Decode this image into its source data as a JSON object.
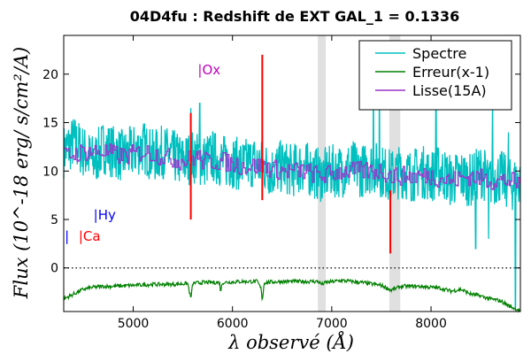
{
  "chart_data": {
    "type": "line",
    "title": "04D4fu : Redshift de EXT GAL_1 = 0.1336",
    "xlabel": "λ observé (Å)",
    "ylabel": "Flux (10^-18 erg/ s/cm²/A)",
    "xlim": [
      4300,
      8900
    ],
    "ylim": [
      -4.5,
      24
    ],
    "x_ticks": [
      5000,
      6000,
      7000,
      8000
    ],
    "y_ticks": [
      0,
      5,
      10,
      15,
      20
    ],
    "grid": false,
    "legend_position": "top-right",
    "zero_line": {
      "y": 0,
      "style": "dotted"
    },
    "shaded_bands": [
      {
        "x0": 6860,
        "x1": 6940
      },
      {
        "x0": 7580,
        "x1": 7690
      }
    ],
    "series": [
      {
        "name": "Spectre",
        "color": "#00bfbf",
        "points": [
          [
            4300,
            12
          ],
          [
            4400,
            13
          ],
          [
            4500,
            12
          ],
          [
            4600,
            11
          ],
          [
            4700,
            12.5
          ],
          [
            4800,
            12
          ],
          [
            4900,
            11.5
          ],
          [
            5000,
            12
          ],
          [
            5100,
            12.5
          ],
          [
            5200,
            11.5
          ],
          [
            5300,
            12
          ],
          [
            5400,
            11.5
          ],
          [
            5500,
            11
          ],
          [
            5600,
            11.5
          ],
          [
            5700,
            11
          ],
          [
            5800,
            11.5
          ],
          [
            5900,
            11
          ],
          [
            6000,
            11
          ],
          [
            6100,
            10.5
          ],
          [
            6200,
            11
          ],
          [
            6300,
            10.5
          ],
          [
            6400,
            10
          ],
          [
            6500,
            10.5
          ],
          [
            6600,
            10
          ],
          [
            6700,
            10.5
          ],
          [
            6800,
            10
          ],
          [
            6900,
            9.5
          ],
          [
            7000,
            10
          ],
          [
            7100,
            10
          ],
          [
            7200,
            10.5
          ],
          [
            7300,
            10
          ],
          [
            7400,
            10.5
          ],
          [
            7500,
            10
          ],
          [
            7600,
            9.5
          ],
          [
            7700,
            10
          ],
          [
            7800,
            9.5
          ],
          [
            7900,
            10
          ],
          [
            8000,
            9.5
          ],
          [
            8100,
            10
          ],
          [
            8200,
            9
          ],
          [
            8300,
            9.5
          ],
          [
            8400,
            9
          ],
          [
            8500,
            10
          ],
          [
            8600,
            9
          ],
          [
            8700,
            9.5
          ],
          [
            8800,
            8.5
          ],
          [
            8900,
            9
          ]
        ],
        "noise_amplitude": 2.8,
        "spikes": [
          [
            5580,
            16.5
          ],
          [
            5670,
            17
          ],
          [
            6300,
            15
          ],
          [
            7420,
            21
          ],
          [
            7480,
            20
          ],
          [
            8050,
            17
          ],
          [
            8450,
            17
          ],
          [
            8620,
            18.5
          ],
          [
            8780,
            14
          ],
          [
            8850,
            -4
          ],
          [
            8450,
            2
          ],
          [
            8580,
            3
          ]
        ]
      },
      {
        "name": "Erreur(x-1)",
        "color": "#008000",
        "points": [
          [
            4300,
            -3.2
          ],
          [
            4400,
            -2.7
          ],
          [
            4500,
            -2.2
          ],
          [
            4600,
            -2.0
          ],
          [
            4700,
            -1.9
          ],
          [
            4800,
            -1.9
          ],
          [
            5000,
            -1.8
          ],
          [
            5200,
            -1.7
          ],
          [
            5400,
            -1.7
          ],
          [
            5550,
            -1.6
          ],
          [
            5580,
            -3.2
          ],
          [
            5600,
            -1.6
          ],
          [
            5700,
            -1.5
          ],
          [
            5870,
            -1.5
          ],
          [
            5880,
            -2.4
          ],
          [
            5900,
            -1.5
          ],
          [
            6100,
            -1.4
          ],
          [
            6250,
            -1.4
          ],
          [
            6290,
            -2.2
          ],
          [
            6300,
            -3.4
          ],
          [
            6320,
            -1.5
          ],
          [
            6500,
            -1.4
          ],
          [
            6860,
            -1.4
          ],
          [
            6900,
            -1.7
          ],
          [
            6940,
            -1.5
          ],
          [
            7100,
            -1.3
          ],
          [
            7300,
            -1.5
          ],
          [
            7500,
            -1.8
          ],
          [
            7600,
            -2.3
          ],
          [
            7700,
            -1.9
          ],
          [
            7900,
            -1.9
          ],
          [
            8100,
            -2.1
          ],
          [
            8200,
            -2.4
          ],
          [
            8300,
            -2.2
          ],
          [
            8400,
            -2.7
          ],
          [
            8500,
            -2.9
          ],
          [
            8600,
            -3.2
          ],
          [
            8700,
            -3.4
          ],
          [
            8800,
            -4
          ],
          [
            8900,
            -4.4
          ]
        ],
        "noise_amplitude": 0.2
      },
      {
        "name": "Lisse(15A)",
        "color": "#9933cc",
        "points": [
          [
            4300,
            11.5
          ],
          [
            4500,
            12
          ],
          [
            4700,
            12
          ],
          [
            4900,
            11.5
          ],
          [
            5100,
            12
          ],
          [
            5300,
            11.5
          ],
          [
            5500,
            11
          ],
          [
            5650,
            11.5
          ],
          [
            5700,
            11
          ],
          [
            5900,
            11
          ],
          [
            6100,
            10.5
          ],
          [
            6300,
            10.5
          ],
          [
            6500,
            10
          ],
          [
            6700,
            10
          ],
          [
            6900,
            9.5
          ],
          [
            7100,
            10
          ],
          [
            7300,
            10
          ],
          [
            7500,
            10
          ],
          [
            7600,
            9.5
          ],
          [
            7800,
            9.5
          ],
          [
            8000,
            9.5
          ],
          [
            8200,
            9
          ],
          [
            8400,
            9.5
          ],
          [
            8600,
            9
          ],
          [
            8800,
            9
          ],
          [
            8900,
            8.5
          ]
        ],
        "noise_amplitude": 1.0
      },
      {
        "name": "",
        "color": "#ff0000",
        "segments": [
          [
            [
              5580,
              5
            ],
            [
              5580,
              16
            ]
          ],
          [
            [
              6300,
              7
            ],
            [
              6300,
              22
            ]
          ],
          [
            [
              7590,
              1.5
            ],
            [
              7590,
              8
            ]
          ]
        ]
      }
    ],
    "annotations": [
      {
        "text": "|Hy",
        "x": 7400,
        "y": 22,
        "color": "#0000ff"
      },
      {
        "text": "|Ox",
        "x": 5650,
        "y": 20,
        "color": "#bf00bf"
      },
      {
        "text": "|Hy",
        "x": 4600,
        "y": 5,
        "color": "#0000ff"
      },
      {
        "text": "|Ca",
        "x": 4450,
        "y": 2.8,
        "color": "#ff0000"
      },
      {
        "text": "|",
        "x": 4310,
        "y": 2.8,
        "color": "#0000ff"
      }
    ]
  }
}
